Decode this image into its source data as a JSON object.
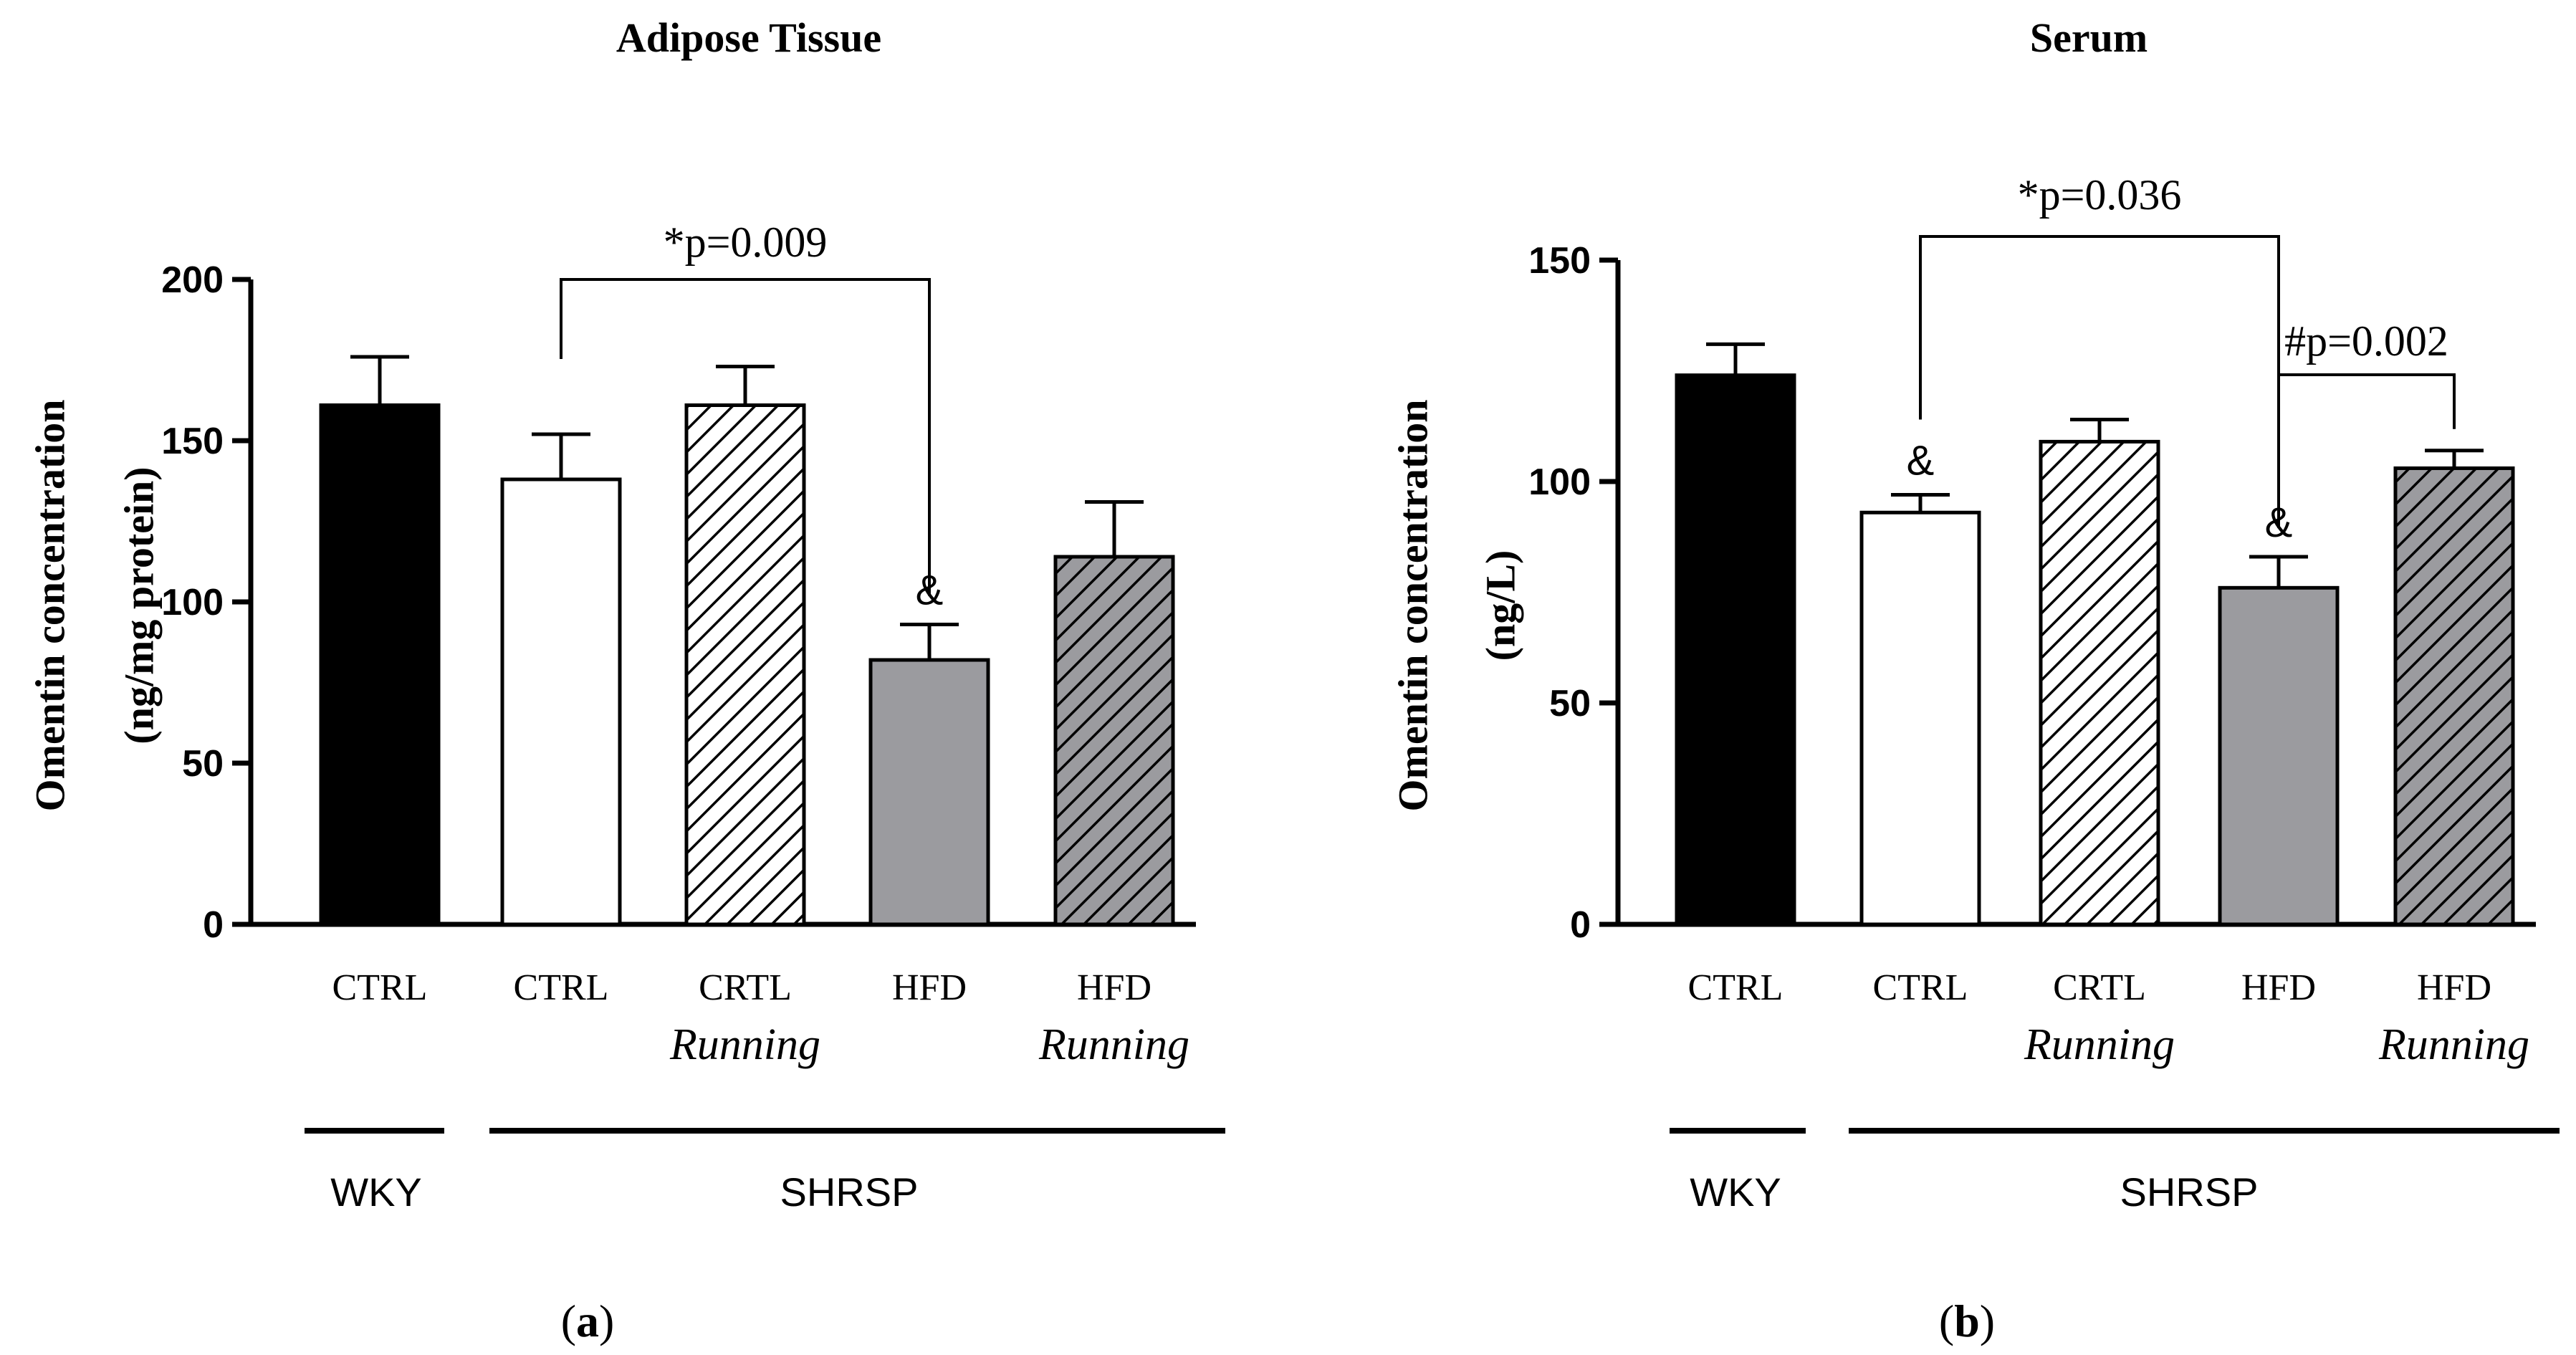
{
  "colors": {
    "wky": "#000000",
    "ctrl": "#ffffff",
    "hfd": "#9b9b9f",
    "hfd_running": "#9b9b9f",
    "axis": "#000000"
  },
  "chart_data": [
    {
      "type": "bar",
      "panel": "(a)",
      "title": "Adipose Tissue",
      "ylabel": [
        "Omentin concentration",
        "(ng/mg protein)"
      ],
      "ylim": [
        0,
        200
      ],
      "yticks": [
        "0",
        "50",
        "100",
        "150",
        "200"
      ],
      "categories": [
        {
          "label": "CTRL",
          "sub": "",
          "group": "WKY"
        },
        {
          "label": "CTRL",
          "sub": "",
          "group": "SHRSP"
        },
        {
          "label": "CRTL",
          "sub": "Running",
          "group": "SHRSP"
        },
        {
          "label": "HFD",
          "sub": "",
          "group": "SHRSP"
        },
        {
          "label": "HFD",
          "sub": "Running",
          "group": "SHRSP"
        }
      ],
      "values": [
        161,
        138,
        161,
        82,
        114
      ],
      "errors": [
        15,
        14,
        12,
        11,
        17
      ],
      "fills": [
        "black",
        "white",
        "hatch-white",
        "gray",
        "hatch-gray"
      ],
      "groups": [
        "WKY",
        "SHRSP"
      ],
      "markers": [
        {
          "bar": 3,
          "text": "&"
        }
      ],
      "brackets": [
        {
          "from": 1,
          "to": 3,
          "text": "*p=0.009"
        }
      ]
    },
    {
      "type": "bar",
      "panel": "(b)",
      "title": "Serum",
      "ylabel": [
        "Omentin concentration",
        "(ng/L)"
      ],
      "ylim": [
        0,
        150
      ],
      "yticks": [
        "0",
        "50",
        "100",
        "150"
      ],
      "categories": [
        {
          "label": "CTRL",
          "sub": "",
          "group": "WKY"
        },
        {
          "label": "CTRL",
          "sub": "",
          "group": "SHRSP"
        },
        {
          "label": "CRTL",
          "sub": "Running",
          "group": "SHRSP"
        },
        {
          "label": "HFD",
          "sub": "",
          "group": "SHRSP"
        },
        {
          "label": "HFD",
          "sub": "Running",
          "group": "SHRSP"
        }
      ],
      "values": [
        124,
        93,
        109,
        76,
        103
      ],
      "errors": [
        7,
        4,
        5,
        7,
        4
      ],
      "fills": [
        "black",
        "white",
        "hatch-white",
        "gray",
        "hatch-gray"
      ],
      "groups": [
        "WKY",
        "SHRSP"
      ],
      "markers": [
        {
          "bar": 1,
          "text": "&"
        },
        {
          "bar": 3,
          "text": "&"
        }
      ],
      "brackets": [
        {
          "from": 1,
          "to": 3,
          "text": "*p=0.036"
        },
        {
          "from": 3,
          "to": 4,
          "text": "#p=0.002"
        }
      ]
    }
  ]
}
